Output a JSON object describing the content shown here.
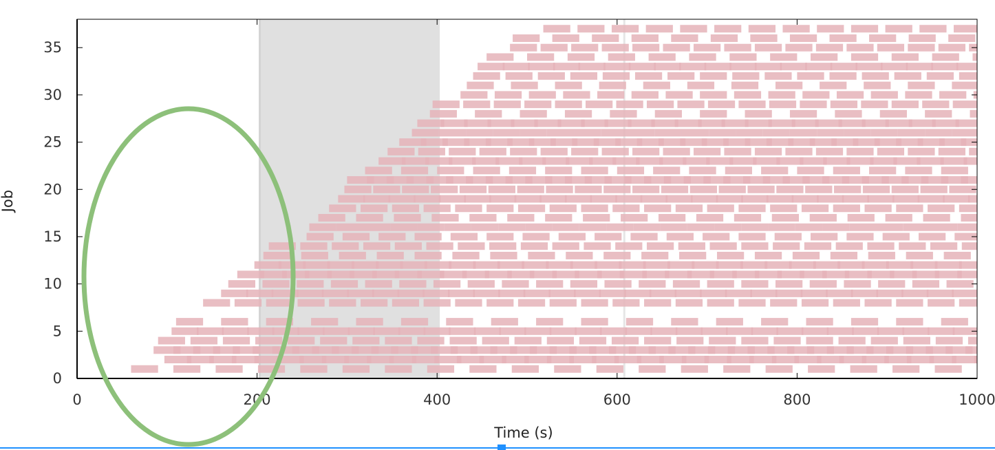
{
  "chart_data": {
    "type": "gantt",
    "title": "",
    "xlabel": "Time (s)",
    "ylabel": "Job",
    "xlim": [
      0,
      1000
    ],
    "ylim": [
      0,
      38
    ],
    "x_ticks": [
      0,
      200,
      400,
      600,
      800,
      1000
    ],
    "y_ticks": [
      0,
      5,
      10,
      15,
      20,
      25,
      30,
      35
    ],
    "highlight_region": {
      "x0": 203,
      "x1": 403,
      "color": "#e0e0e0"
    },
    "vertical_marker": {
      "x": 608,
      "color": "#e6e6e6"
    },
    "bar_color": "#e5b3b8",
    "bar_duration_s": 30,
    "jobs": [
      {
        "job": 1,
        "start": 60,
        "period": 47
      },
      {
        "job": 2,
        "start": 97,
        "period": 25
      },
      {
        "job": 3,
        "start": 85,
        "period": 22
      },
      {
        "job": 4,
        "start": 90,
        "period": 36
      },
      {
        "job": 5,
        "start": 105,
        "period": 28
      },
      {
        "job": 6,
        "start": 110,
        "period": 50
      },
      {
        "job": 8,
        "start": 140,
        "period": 35
      },
      {
        "job": 9,
        "start": 160,
        "period": 28
      },
      {
        "job": 10,
        "start": 168,
        "period": 38
      },
      {
        "job": 11,
        "start": 178,
        "period": 25
      },
      {
        "job": 12,
        "start": 197,
        "period": 27
      },
      {
        "job": 13,
        "start": 207,
        "period": 42
      },
      {
        "job": 14,
        "start": 213,
        "period": 35
      },
      {
        "job": 15,
        "start": 255,
        "period": 40
      },
      {
        "job": 16,
        "start": 258,
        "period": 30
      },
      {
        "job": 17,
        "start": 268,
        "period": 42
      },
      {
        "job": 18,
        "start": 280,
        "period": 35
      },
      {
        "job": 19,
        "start": 290,
        "period": 28
      },
      {
        "job": 20,
        "start": 297,
        "period": 32
      },
      {
        "job": 21,
        "start": 300,
        "period": 22
      },
      {
        "job": 22,
        "start": 320,
        "period": 40
      },
      {
        "job": 23,
        "start": 335,
        "period": 26
      },
      {
        "job": 24,
        "start": 345,
        "period": 34
      },
      {
        "job": 25,
        "start": 358,
        "period": 24
      },
      {
        "job": 26,
        "start": 372,
        "period": 30
      },
      {
        "job": 27,
        "start": 378,
        "period": 26
      },
      {
        "job": 28,
        "start": 392,
        "period": 50
      },
      {
        "job": 29,
        "start": 395,
        "period": 34
      },
      {
        "job": 30,
        "start": 426,
        "period": 38
      },
      {
        "job": 31,
        "start": 433,
        "period": 49
      },
      {
        "job": 32,
        "start": 440,
        "period": 36
      },
      {
        "job": 33,
        "start": 445,
        "period": 28
      },
      {
        "job": 34,
        "start": 455,
        "period": 45
      },
      {
        "job": 35,
        "start": 481,
        "period": 34
      },
      {
        "job": 36,
        "start": 484,
        "period": 44
      },
      {
        "job": 37,
        "start": 518,
        "period": 38
      }
    ]
  },
  "annotation": {
    "type": "ellipse",
    "color": "#8dc07a"
  }
}
